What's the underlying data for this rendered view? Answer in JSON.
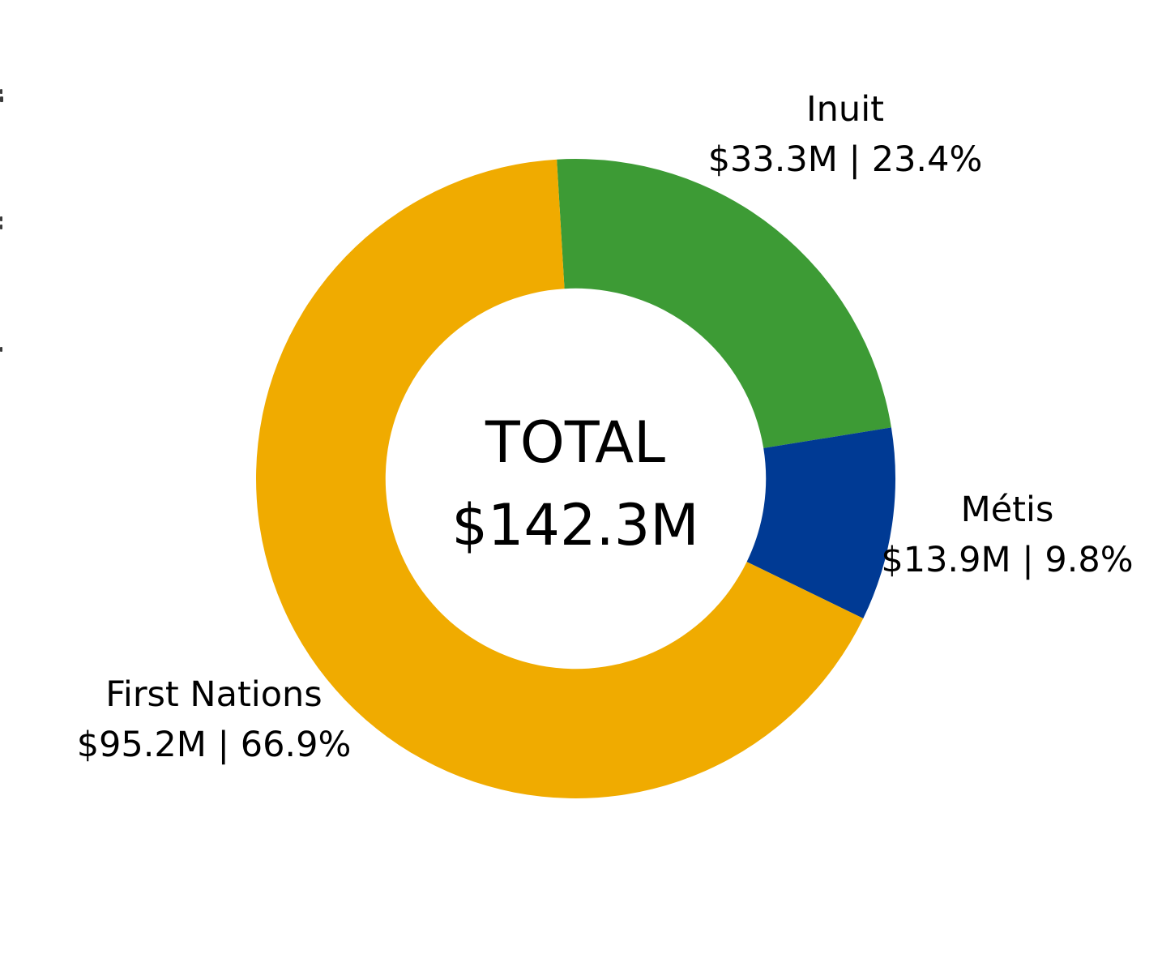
{
  "chart_data": {
    "type": "pie",
    "subtype": "donut",
    "title": "",
    "legend_position": "none",
    "background": "#ffffff",
    "text_color": "#000000",
    "center_label": {
      "title": "TOTAL",
      "value": "$142.3M",
      "total_musd": 142.3
    },
    "hole_ratio": 0.595,
    "start_angle_deg": -3.4,
    "direction": "clockwise",
    "segments": [
      {
        "id": "inuit",
        "label": "Inuit",
        "sublabel": "$33.3M | 23.4%",
        "value_musd": 33.3,
        "percent": 23.4,
        "color": "#3d9b35"
      },
      {
        "id": "metis",
        "label": "Métis",
        "sublabel": "$13.9M | 9.8%",
        "value_musd": 13.9,
        "percent": 9.8,
        "color": "#003a94"
      },
      {
        "id": "first-nations",
        "label": "First Nations",
        "sublabel": "$95.2M | 66.9%",
        "value_musd": 95.2,
        "percent": 66.9,
        "color": "#f0ab00"
      }
    ]
  }
}
